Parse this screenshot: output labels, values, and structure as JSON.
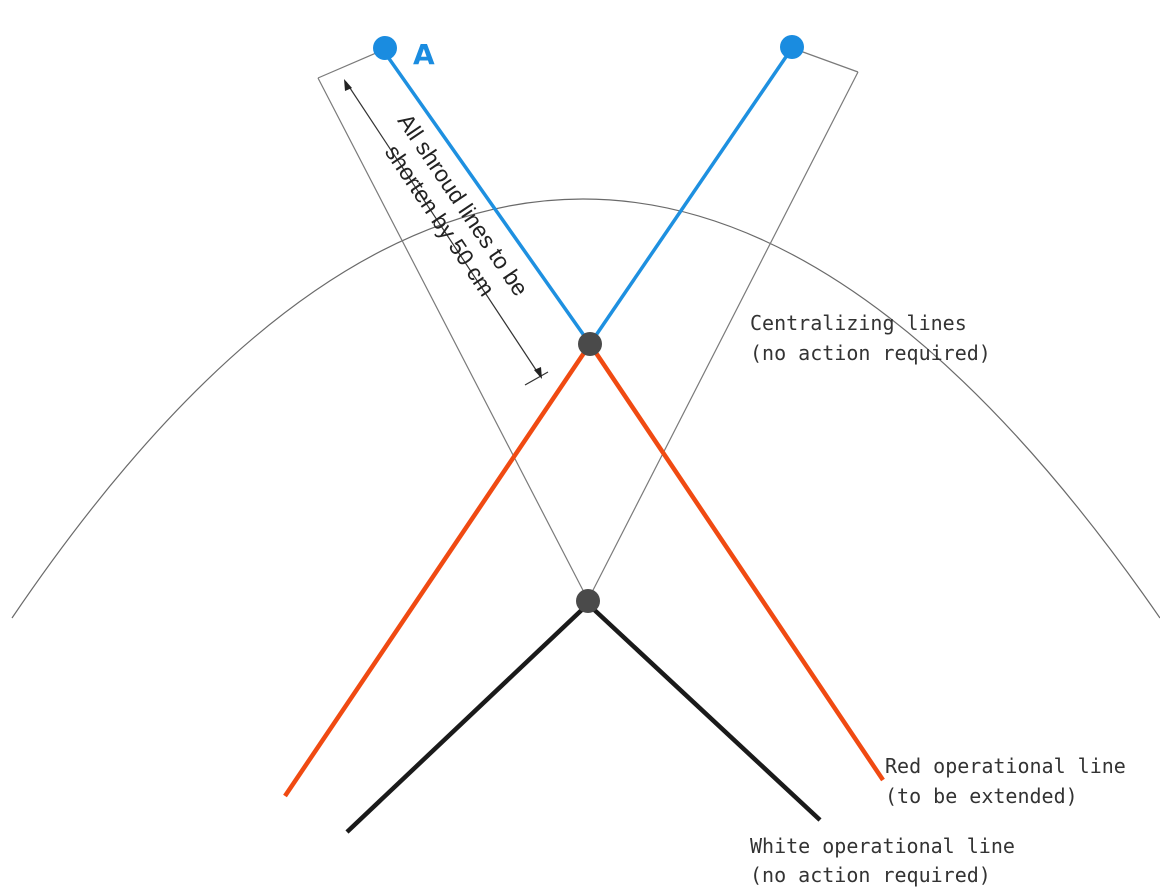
{
  "diagram": {
    "point_label": "A",
    "measurement_label": {
      "line1": "All shroud lines to be",
      "line2": "shorten by 50 cm"
    },
    "centralizing_label": {
      "line1": "Centralizing lines",
      "line2": "(no action required)"
    },
    "red_label": {
      "line1": "Red operational line",
      "line2": "(to be extended)"
    },
    "white_label": {
      "line1": "White operational line",
      "line2": "(no action required)"
    }
  },
  "colors": {
    "shroud_line": "#1e90e0",
    "red_operational": "#f04a12",
    "white_operational": "#1a1a1a",
    "centralizing_line": "#7a7a7a",
    "canopy_arc": "#6a6a6a",
    "junction": "#4a4a4a",
    "attachment_point": "#1a8ce0"
  }
}
